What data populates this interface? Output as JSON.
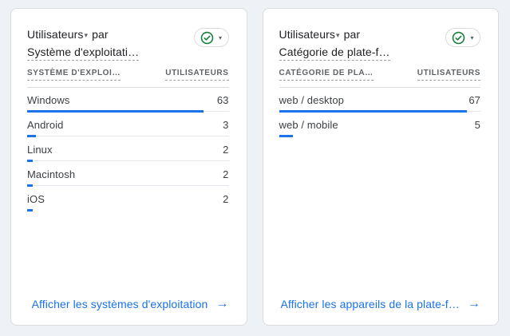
{
  "colors": {
    "page_background": "#eef1f5",
    "card_border": "#dadce0",
    "bar_blue": "#1a73e8",
    "link_blue": "#1a73e8",
    "check_green": "#188038",
    "text_primary": "#3c4043",
    "text_secondary": "#5f6368"
  },
  "cards": [
    {
      "title": {
        "metric": "Utilisateurs",
        "caret": "▾",
        "connector": "par",
        "dimension": "Système d'exploitati…"
      },
      "badge": {
        "status_icon": "check-circle",
        "caret": "▾"
      },
      "columns": {
        "dimension": "SYSTÈME D'EXPLOI…",
        "metric": "UTILISATEURS"
      },
      "rows": [
        {
          "label": "Windows",
          "value": 63
        },
        {
          "label": "Android",
          "value": 3
        },
        {
          "label": "Linux",
          "value": 2
        },
        {
          "label": "Macintosh",
          "value": 2
        },
        {
          "label": "iOS",
          "value": 2
        }
      ],
      "footer": {
        "label": "Afficher les systèmes d'exploitation",
        "arrow": "→"
      }
    },
    {
      "title": {
        "metric": "Utilisateurs",
        "caret": "▾",
        "connector": "par",
        "dimension": "Catégorie de plate-f…"
      },
      "badge": {
        "status_icon": "check-circle",
        "caret": "▾"
      },
      "columns": {
        "dimension": "CATÉGORIE DE PLA…",
        "metric": "UTILISATEURS"
      },
      "rows": [
        {
          "label": "web / desktop",
          "value": 67
        },
        {
          "label": "web / mobile",
          "value": 5
        }
      ],
      "footer": {
        "label": "Afficher les appareils de la plate-f…",
        "arrow": "→"
      }
    }
  ]
}
